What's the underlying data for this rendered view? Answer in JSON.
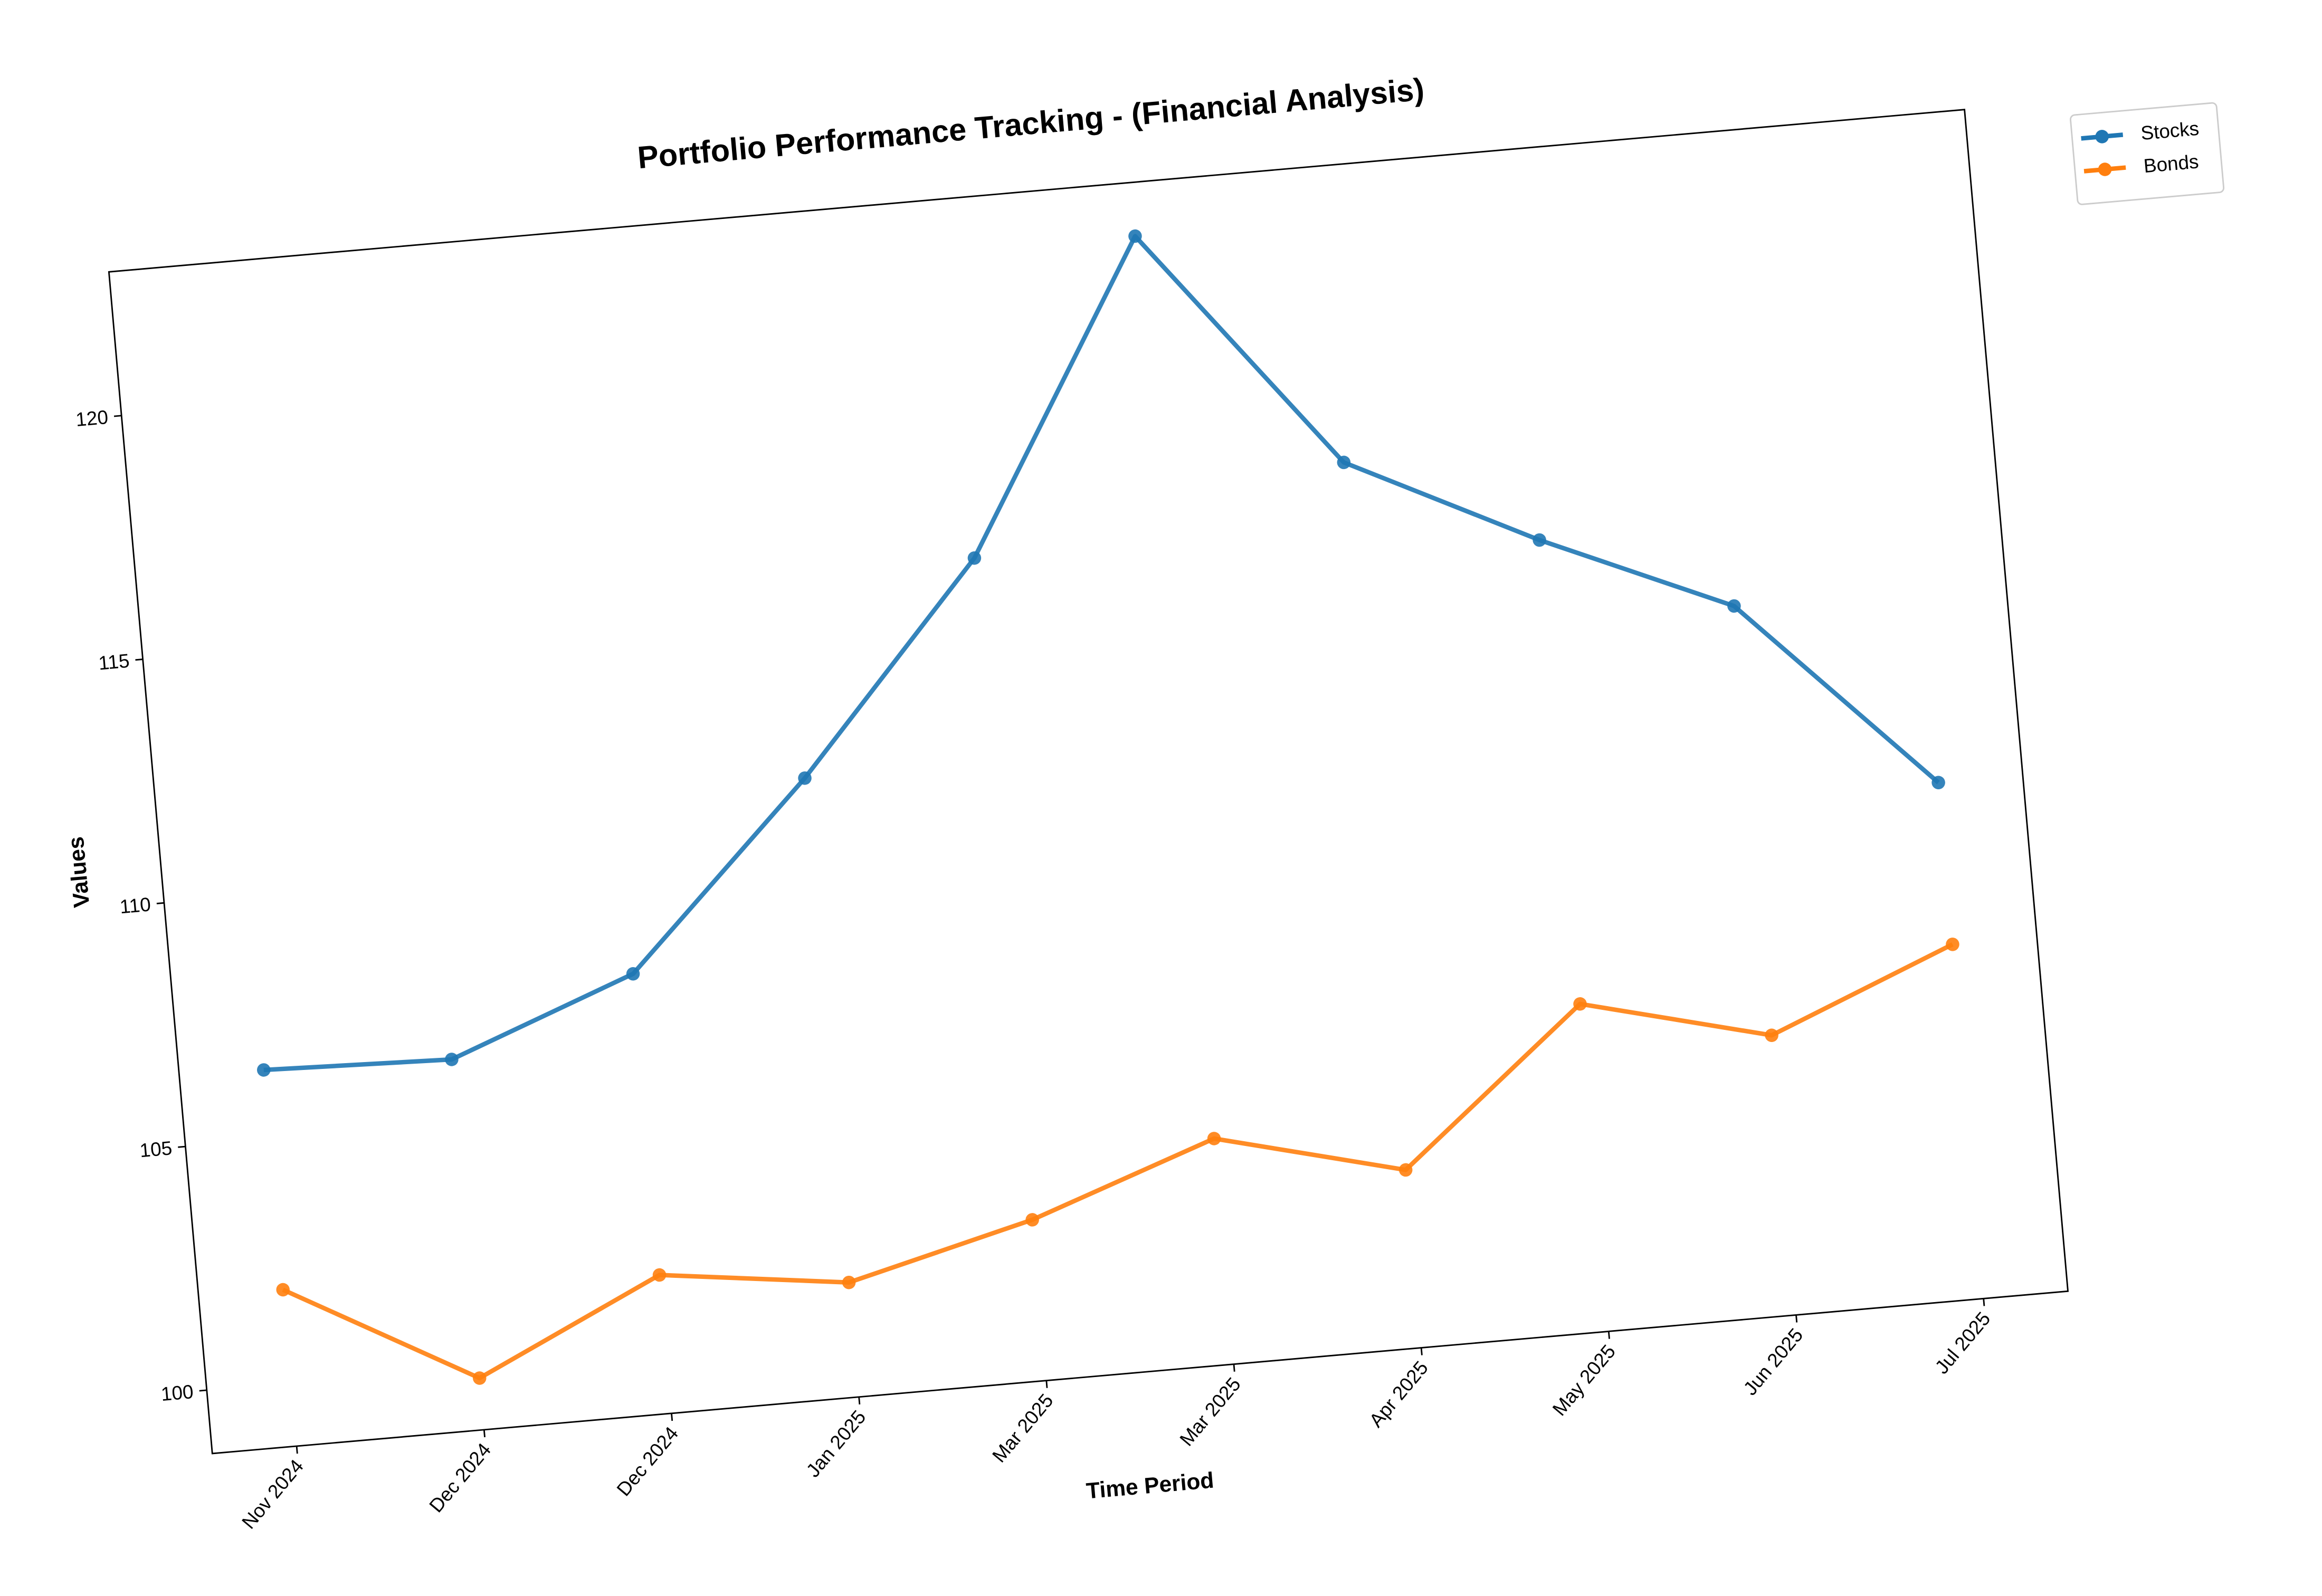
{
  "chart_data": {
    "type": "line",
    "title": "Portfolio Performance Tracking - (Financial Analysis)",
    "x_label": "Time Period",
    "y_label": "Values",
    "categories": [
      "Nov 2024",
      "Dec 2024",
      "Dec 2024",
      "Jan 2025",
      "Mar 2025",
      "Mar 2025",
      "Apr 2025",
      "May 2025",
      "Jun 2025",
      "Jul 2025"
    ],
    "series": [
      {
        "name": "Stocks",
        "color": "#1f77b4",
        "values": [
          106.42,
          106.3,
          107.72,
          111.4,
          115.58,
          121.85,
          116.87,
          114.94,
          113.25,
          109.29
        ]
      },
      {
        "name": "Bonds",
        "color": "#ff7f0e",
        "values": [
          101.91,
          99.76,
          101.54,
          101.05,
          102.0,
          103.33,
          102.35,
          105.42,
          104.44,
          105.97
        ]
      }
    ],
    "ylim": [
      98.7,
      122.95
    ],
    "yticks": [
      100,
      105,
      110,
      115,
      120
    ],
    "grid": false,
    "legend": "outside-right"
  }
}
